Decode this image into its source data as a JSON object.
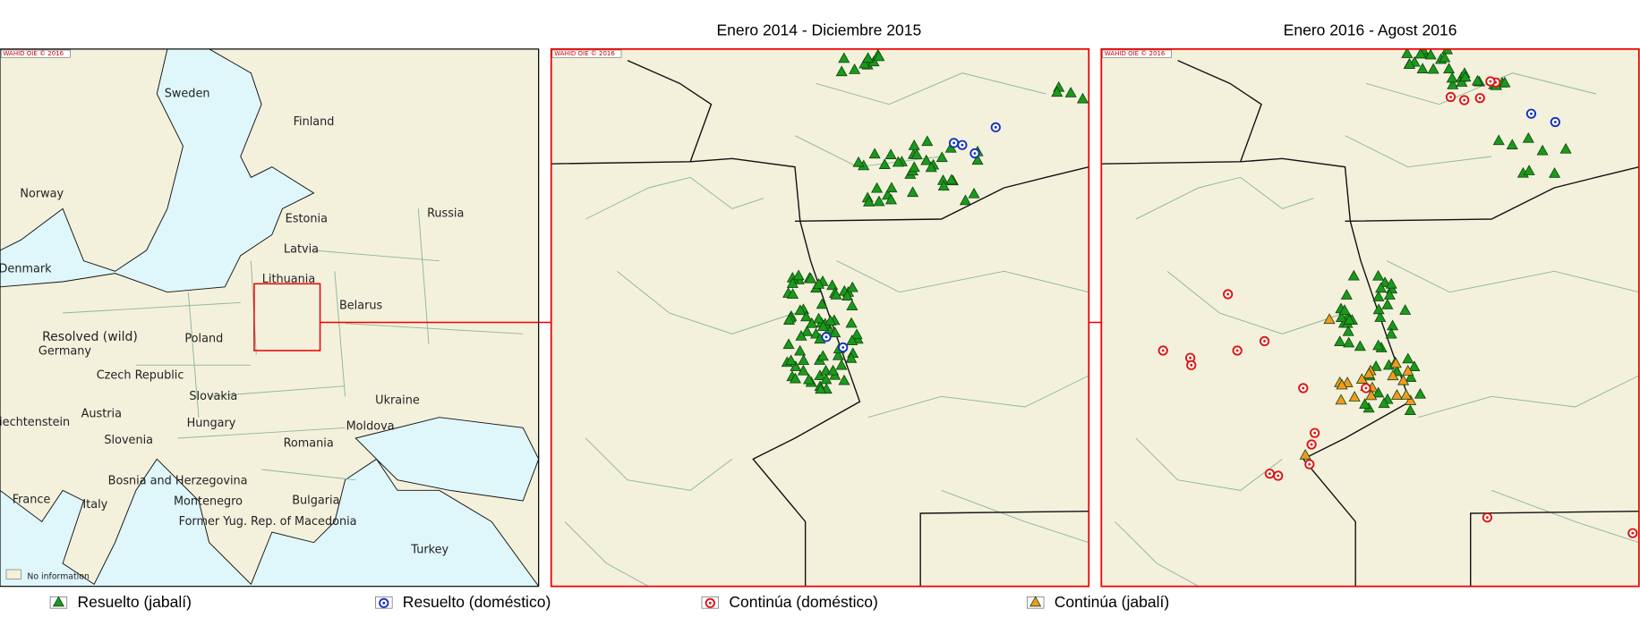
{
  "overview": {
    "copyright": "WAHID OIE © 2016",
    "note": "No information",
    "highlight": "Resolved (wild)",
    "labels": [
      "Sweden",
      "Finland",
      "Norway",
      "Estonia",
      "Russia",
      "Latvia",
      "Denmark",
      "Lithuania",
      "Belarus",
      "Poland",
      "Germany",
      "Czech Republic",
      "Slovakia",
      "Ukraine",
      "Austria",
      "Hungary",
      "Moldova",
      "Liechtenstein",
      "Slovenia",
      "Romania",
      "Bosnia and Herzegovina",
      "Bulgaria",
      "Montenegro",
      "France",
      "Italy",
      "Former Yug. Rep. of Macedonia",
      "Turkey"
    ]
  },
  "panels": [
    {
      "title": "Enero 2014 - Diciembre 2015",
      "copyright": "WAHID OIE © 2016"
    },
    {
      "title": "Enero 2016 - Agost 2016",
      "copyright": "WAHID OIE © 2016"
    }
  ],
  "legend": [
    "Resuelto (jabalí)",
    "Resuelto (doméstico)",
    "Continúa (doméstico)",
    "Continúa (jabalí)"
  ]
}
